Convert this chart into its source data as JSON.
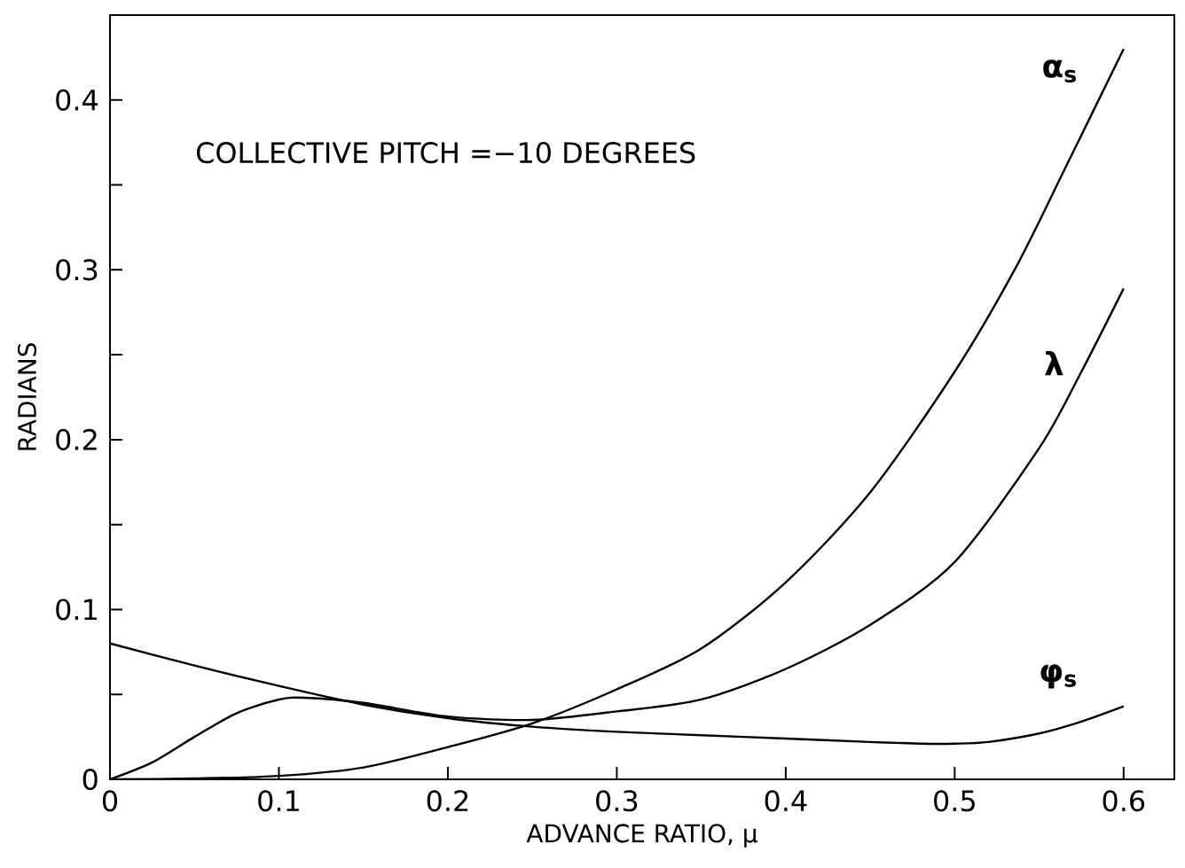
{
  "chart_data": {
    "type": "line",
    "xlabel": "ADVANCE RATIO, μ",
    "ylabel": "RADIANS",
    "annotations": [
      "COLLECTIVE PITCH =−10 DEGREES"
    ],
    "xlim": [
      0,
      0.63
    ],
    "ylim": [
      0,
      0.45
    ],
    "xticks": [
      0,
      0.1,
      0.2,
      0.3,
      0.4,
      0.5,
      0.6
    ],
    "yticks": [
      0,
      {
        "value": 0.05,
        "label": null
      },
      0.1,
      {
        "value": 0.15,
        "label": null
      },
      0.2,
      {
        "value": 0.25,
        "label": null
      },
      0.3,
      {
        "value": 0.35,
        "label": null
      },
      0.4
    ],
    "grid": false,
    "legend": false,
    "marker": "none",
    "line_style": "solid",
    "series": [
      {
        "name": "α$_{s}$",
        "color": "#000000",
        "x": [
          0,
          0.05,
          0.1,
          0.15,
          0.2,
          0.25,
          0.3,
          0.35,
          0.4,
          0.45,
          0.5,
          0.536,
          0.565,
          0.6
        ],
        "values": [
          0,
          0.0005,
          0.002,
          0.007,
          0.019,
          0.033,
          0.053,
          0.077,
          0.116,
          0.169,
          0.24,
          0.301,
          0.359,
          0.43
        ]
      },
      {
        "name": "λ",
        "color": "#000000",
        "x": [
          0,
          0.025,
          0.05,
          0.075,
          0.1,
          0.115,
          0.15,
          0.2,
          0.25,
          0.3,
          0.35,
          0.4,
          0.45,
          0.5,
          0.55,
          0.575,
          0.6
        ],
        "values": [
          0,
          0.01,
          0.025,
          0.039,
          0.047,
          0.048,
          0.045,
          0.037,
          0.035,
          0.04,
          0.047,
          0.065,
          0.091,
          0.128,
          0.195,
          0.24,
          0.289
        ]
      },
      {
        "name": "φ$_{s}$",
        "color": "#000000",
        "x": [
          0,
          0.05,
          0.1,
          0.15,
          0.2,
          0.25,
          0.3,
          0.35,
          0.4,
          0.45,
          0.48,
          0.5,
          0.52,
          0.55,
          0.575,
          0.6
        ],
        "values": [
          0.08,
          0.067,
          0.055,
          0.044,
          0.036,
          0.031,
          0.028,
          0.026,
          0.024,
          0.022,
          0.021,
          0.021,
          0.022,
          0.027,
          0.034,
          0.043
        ]
      }
    ]
  }
}
